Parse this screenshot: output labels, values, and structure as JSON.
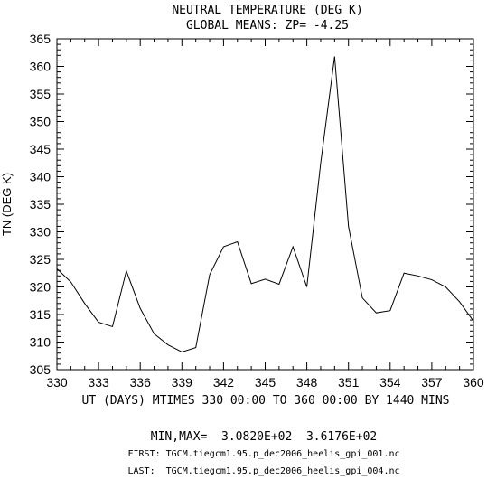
{
  "chart_data": {
    "type": "line",
    "title": "NEUTRAL TEMPERATURE (DEG K)",
    "subtitle": "GLOBAL MEANS: ZP= -4.25",
    "xlabel": "UT (DAYS) MTIMES 330 00:00 TO 360 00:00 BY 1440 MINS",
    "ylabel": "TN (DEG K)",
    "xlim": [
      330,
      360
    ],
    "ylim": [
      305,
      365
    ],
    "xticks": [
      "330",
      "333",
      "336",
      "339",
      "342",
      "345",
      "348",
      "351",
      "354",
      "357",
      "360"
    ],
    "yticks": [
      "305",
      "310",
      "315",
      "320",
      "325",
      "330",
      "335",
      "340",
      "345",
      "350",
      "355",
      "360",
      "365"
    ],
    "grid": false,
    "x": [
      330,
      331,
      332,
      333,
      334,
      335,
      336,
      337,
      338,
      339,
      340,
      341,
      342,
      343,
      344,
      345,
      346,
      347,
      348,
      349,
      350,
      351,
      352,
      353,
      354,
      355,
      356,
      357,
      358,
      359,
      360
    ],
    "series": [
      {
        "values": [
          323.3,
          320.9,
          317.0,
          313.6,
          312.8,
          322.9,
          316.1,
          311.5,
          309.5,
          308.2,
          309.0,
          322.2,
          327.3,
          328.2,
          320.6,
          321.4,
          320.5,
          327.3,
          320.0,
          342.5,
          361.8,
          331.0,
          318.0,
          315.3,
          315.7,
          322.5,
          322.0,
          321.3,
          320.0,
          317.3,
          313.8
        ]
      }
    ],
    "minmax_text": "MIN,MAX=  3.0820E+02  3.6176E+02",
    "first_file_text": "FIRST: TGCM.tiegcm1.95.p_dec2006_heelis_gpi_001.nc",
    "last_file_text": "LAST:  TGCM.tiegcm1.95.p_dec2006_heelis_gpi_004.nc"
  }
}
